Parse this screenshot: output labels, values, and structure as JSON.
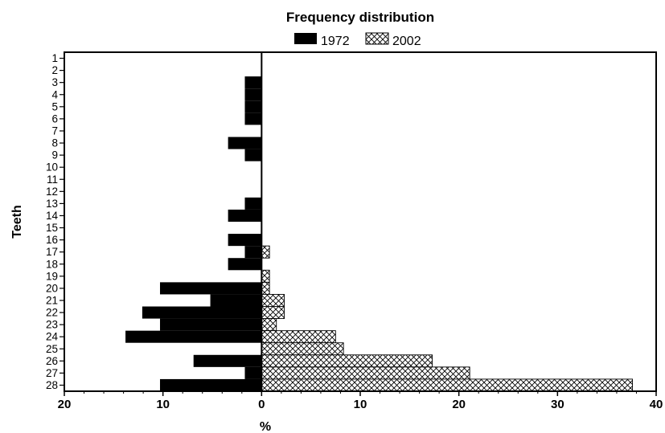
{
  "chart_data": {
    "type": "bar",
    "orientation": "horizontal",
    "layout": "back-to-back",
    "title": "Frequency distribution",
    "xlabel": "%",
    "ylabel": "Teeth",
    "categories": [
      "1",
      "2",
      "3",
      "4",
      "5",
      "6",
      "7",
      "8",
      "9",
      "10",
      "11",
      "12",
      "13",
      "14",
      "15",
      "16",
      "17",
      "18",
      "19",
      "20",
      "21",
      "22",
      "23",
      "24",
      "25",
      "26",
      "27",
      "28"
    ],
    "x_ticks": [
      {
        "value": -20,
        "label": "20"
      },
      {
        "value": -10,
        "label": "10"
      },
      {
        "value": 0,
        "label": "0"
      },
      {
        "value": 10,
        "label": "10"
      },
      {
        "value": 20,
        "label": "20"
      },
      {
        "value": 30,
        "label": "30"
      },
      {
        "value": 40,
        "label": "40"
      }
    ],
    "xlim": [
      -20,
      40
    ],
    "legend_position": "top-center",
    "series": [
      {
        "name": "1972",
        "direction": "left",
        "pattern": "solid",
        "color": "#000000",
        "values": [
          0,
          0,
          1.7,
          1.7,
          1.7,
          1.7,
          0,
          3.4,
          1.7,
          0,
          0,
          0,
          1.7,
          3.4,
          0,
          3.4,
          1.7,
          3.4,
          0,
          10.3,
          5.2,
          12.1,
          10.3,
          13.8,
          0,
          6.9,
          1.7,
          10.3
        ]
      },
      {
        "name": "2002",
        "direction": "right",
        "pattern": "cross-hatch",
        "color": "#000000",
        "values": [
          0,
          0,
          0,
          0,
          0,
          0,
          0,
          0,
          0,
          0,
          0,
          0,
          0,
          0,
          0,
          0,
          0.8,
          0,
          0.8,
          0.8,
          2.3,
          2.3,
          1.5,
          7.5,
          8.3,
          17.3,
          21.1,
          37.6
        ]
      }
    ]
  }
}
